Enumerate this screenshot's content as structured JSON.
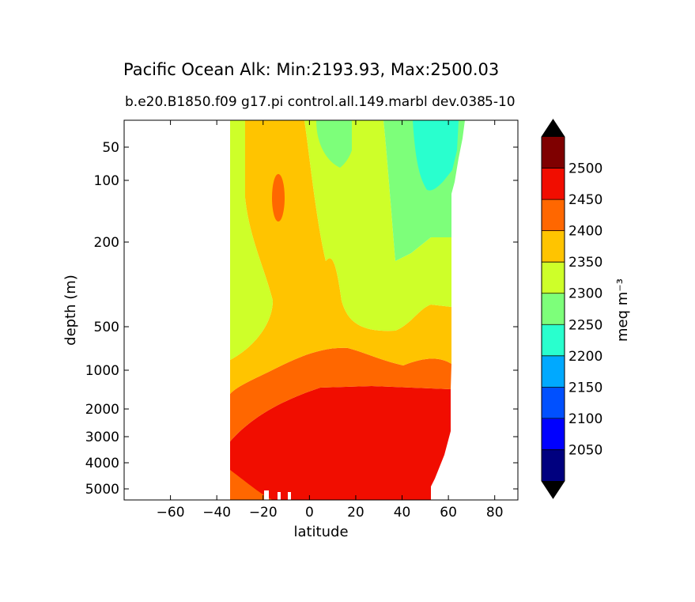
{
  "chart_data": {
    "type": "contourf",
    "title": "Pacific Ocean Alk: Min:2193.93, Max:2500.03",
    "subtitle_left": "b.e20.B1850.f09 g17.pi control.all.149.marbl dev.038",
    "subtitle_right": "5-10",
    "xlabel": "latitude",
    "ylabel": "depth (m)",
    "xlim": [
      -80,
      90
    ],
    "x_ticks": [
      -60,
      -40,
      -20,
      0,
      20,
      40,
      60,
      80
    ],
    "x_tick_labels": [
      "−60",
      "−40",
      "−20",
      "0",
      "20",
      "40",
      "60",
      "80"
    ],
    "y_ticks": [
      50,
      100,
      200,
      500,
      1000,
      2000,
      3000,
      4000,
      5000
    ],
    "y_tick_labels": [
      "50",
      "100",
      "200",
      "500",
      "1000",
      "2000",
      "3000",
      "4000",
      "5000"
    ],
    "y_inverted": true,
    "colorbar": {
      "label": "meq m⁻³",
      "levels": [
        2000,
        2050,
        2100,
        2150,
        2200,
        2250,
        2300,
        2350,
        2400,
        2450,
        2500,
        2550
      ],
      "tick_labels": [
        "2050",
        "2100",
        "2150",
        "2200",
        "2250",
        "2300",
        "2350",
        "2400",
        "2450",
        "2500"
      ],
      "colors": [
        "#00007f",
        "#0000ff",
        "#0050ff",
        "#00a9ff",
        "#29ffce",
        "#7dff7a",
        "#ceff29",
        "#ffc400",
        "#ff6700",
        "#f10d00",
        "#7f0000"
      ],
      "extend": "both"
    }
  }
}
